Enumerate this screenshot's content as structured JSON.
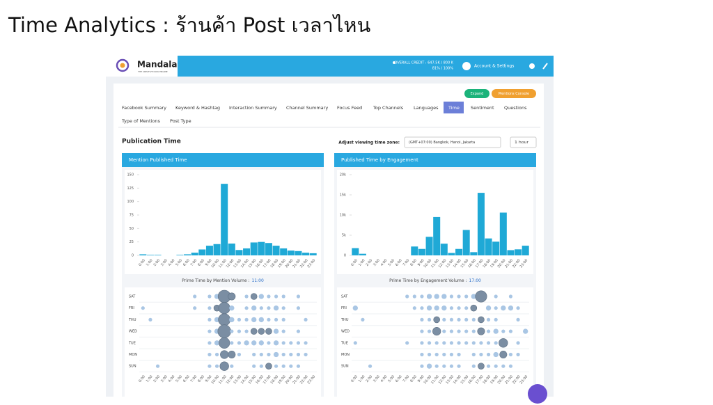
{
  "slide_title": "Time Analytics : ร้านค้า Post เวลาไหน",
  "app": {
    "logo": "Mandala",
    "tagline": "THE CREATIVE DATA ENGINE",
    "credit": "OVERALL CREDIT : 647.5K / 800 K",
    "credit_pct": "81% / 100%",
    "account": "Account & Settings",
    "expand": "Expand",
    "console": "Mentions Console",
    "tabs": [
      "Facebook Summary",
      "Keyword & Hashtag",
      "Interaction Summary",
      "Channel Summary",
      "Focus Feed",
      "Top Channels",
      "Languages",
      "Time",
      "Sentiment",
      "Questions",
      "Type of Mentions",
      "Post Type"
    ],
    "active_tab": "Time",
    "section_title": "Publication Time",
    "timezone_label": "Adjust viewing time zone:",
    "timezone": "(GMT+07:00) Bangkok, Hanoi, Jakarta",
    "interval": "1 hour"
  },
  "chart_data": [
    {
      "type": "bar",
      "title": "Mention Published Time",
      "color": "#1fa9d6",
      "categories": [
        "0:00",
        "1:00",
        "2:00",
        "3:00",
        "4:00",
        "5:00",
        "6:00",
        "7:00",
        "8:00",
        "9:00",
        "10:00",
        "11:00",
        "12:00",
        "13:00",
        "14:00",
        "15:00",
        "16:00",
        "17:00",
        "18:00",
        "19:00",
        "20:00",
        "21:00",
        "22:00",
        "23:00"
      ],
      "values": [
        2,
        1,
        1,
        0,
        0,
        1,
        2,
        5,
        11,
        18,
        21,
        133,
        22,
        10,
        13,
        24,
        25,
        23,
        18,
        13,
        9,
        8,
        5,
        4
      ],
      "ylim": [
        0,
        150
      ],
      "yticks": [
        0,
        25,
        50,
        75,
        100,
        125,
        150
      ]
    },
    {
      "type": "bubble",
      "subtitle": "Prime Time by Mention Volume :",
      "prime_time": "11:00",
      "rows": [
        "SAT",
        "FRI",
        "THU",
        "WED",
        "TUE",
        "MON",
        "SUN"
      ],
      "categories": [
        "0:00",
        "1:00",
        "2:00",
        "3:00",
        "4:00",
        "5:00",
        "6:00",
        "7:00",
        "8:00",
        "9:00",
        "10:00",
        "11:00",
        "12:00",
        "13:00",
        "14:00",
        "15:00",
        "16:00",
        "17:00",
        "18:00",
        "19:00",
        "20:00",
        "21:00",
        "22:00",
        "23:00"
      ],
      "values": [
        [
          0,
          0,
          0,
          0,
          0,
          0,
          0,
          1,
          0,
          1,
          2,
          12,
          4,
          0,
          1,
          3,
          2,
          1,
          1,
          1,
          0,
          1,
          0,
          0
        ],
        [
          1,
          0,
          0,
          0,
          0,
          0,
          0,
          1,
          0,
          1,
          3,
          10,
          2,
          0,
          1,
          2,
          1,
          1,
          2,
          1,
          0,
          1,
          0,
          0
        ],
        [
          0,
          1,
          0,
          0,
          0,
          0,
          0,
          0,
          0,
          1,
          2,
          11,
          2,
          1,
          1,
          2,
          2,
          1,
          1,
          1,
          0,
          0,
          1,
          0
        ],
        [
          0,
          0,
          0,
          0,
          0,
          0,
          0,
          0,
          0,
          1,
          2,
          13,
          1,
          1,
          1,
          3,
          3,
          3,
          2,
          1,
          0,
          1,
          0,
          0
        ],
        [
          0,
          0,
          0,
          0,
          0,
          0,
          0,
          0,
          0,
          1,
          2,
          9,
          1,
          1,
          2,
          2,
          2,
          1,
          2,
          1,
          1,
          1,
          1,
          0
        ],
        [
          0,
          0,
          0,
          0,
          0,
          0,
          0,
          0,
          0,
          1,
          1,
          5,
          4,
          1,
          0,
          1,
          1,
          1,
          2,
          1,
          1,
          1,
          1,
          0
        ],
        [
          0,
          0,
          1,
          0,
          0,
          0,
          0,
          0,
          0,
          1,
          1,
          6,
          1,
          0,
          0,
          1,
          1,
          3,
          1,
          1,
          1,
          1,
          0,
          0
        ]
      ]
    },
    {
      "type": "bar",
      "title": "Published Time by Engagement",
      "color": "#1fa9d6",
      "categories": [
        "0:00",
        "1:00",
        "2:00",
        "3:00",
        "4:00",
        "5:00",
        "6:00",
        "7:00",
        "8:00",
        "9:00",
        "10:00",
        "11:00",
        "12:00",
        "13:00",
        "14:00",
        "15:00",
        "16:00",
        "17:00",
        "18:00",
        "19:00",
        "20:00",
        "21:00",
        "22:00",
        "23:00"
      ],
      "values": [
        1800,
        400,
        0,
        0,
        0,
        0,
        0,
        0,
        2200,
        1600,
        4600,
        9500,
        2900,
        600,
        1600,
        6300,
        800,
        15500,
        4200,
        3400,
        10600,
        1300,
        1500,
        2400
      ],
      "ylim": [
        0,
        20000
      ],
      "yticks": [
        0,
        {
          "value": 5000,
          "label": "5k"
        },
        {
          "value": 10000,
          "label": "10k"
        },
        {
          "value": 15000,
          "label": "15k"
        },
        {
          "value": 20000,
          "label": "20k"
        }
      ]
    },
    {
      "type": "bubble",
      "subtitle": "Prime Time by Engagement Volume :",
      "prime_time": "17:00",
      "rows": [
        "SAT",
        "FRI",
        "THU",
        "WED",
        "TUE",
        "MON",
        "SUN"
      ],
      "categories": [
        "0:00",
        "1:00",
        "2:00",
        "3:00",
        "4:00",
        "5:00",
        "6:00",
        "7:00",
        "8:00",
        "9:00",
        "10:00",
        "11:00",
        "12:00",
        "13:00",
        "14:00",
        "15:00",
        "16:00",
        "17:00",
        "18:00",
        "19:00",
        "20:00",
        "21:00",
        "22:00",
        "23:00"
      ],
      "values": [
        [
          0,
          0,
          0,
          0,
          0,
          0,
          0,
          1,
          1,
          1,
          2,
          2,
          2,
          1,
          1,
          1,
          2,
          10,
          0,
          1,
          0,
          1,
          0,
          0
        ],
        [
          2,
          0,
          0,
          0,
          0,
          0,
          0,
          0,
          1,
          1,
          2,
          2,
          2,
          1,
          1,
          1,
          3,
          0,
          2,
          1,
          2,
          2,
          1,
          0
        ],
        [
          0,
          1,
          0,
          0,
          0,
          0,
          0,
          0,
          0,
          1,
          1,
          3,
          1,
          1,
          1,
          1,
          1,
          3,
          1,
          1,
          0,
          0,
          1,
          0
        ],
        [
          0,
          0,
          0,
          0,
          0,
          0,
          0,
          0,
          0,
          1,
          1,
          5,
          1,
          1,
          1,
          1,
          1,
          4,
          1,
          2,
          1,
          1,
          0,
          2
        ],
        [
          1,
          0,
          0,
          0,
          0,
          0,
          0,
          1,
          0,
          1,
          1,
          1,
          1,
          1,
          1,
          1,
          1,
          1,
          1,
          1,
          6,
          0,
          1,
          0
        ],
        [
          0,
          0,
          0,
          0,
          0,
          0,
          0,
          0,
          0,
          1,
          1,
          1,
          1,
          1,
          1,
          0,
          1,
          1,
          1,
          2,
          4,
          1,
          1,
          0
        ],
        [
          0,
          0,
          1,
          0,
          0,
          0,
          0,
          0,
          0,
          1,
          2,
          1,
          1,
          1,
          1,
          0,
          1,
          3,
          1,
          1,
          1,
          1,
          0,
          0
        ]
      ]
    }
  ]
}
